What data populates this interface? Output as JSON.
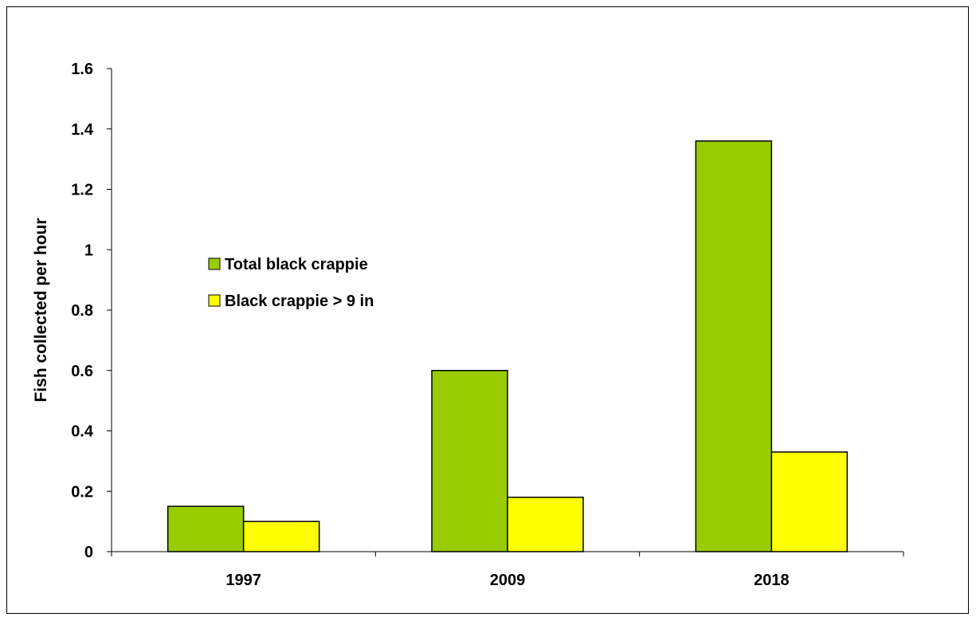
{
  "chart_data": {
    "type": "bar",
    "title": "",
    "xlabel": "",
    "ylabel": "Fish collected per hour",
    "categories": [
      "1997",
      "2009",
      "2018"
    ],
    "series": [
      {
        "name": "Total black crappie",
        "values": [
          0.15,
          0.6,
          1.36
        ],
        "color": "#99cc00"
      },
      {
        "name": "Black crappie > 9 in",
        "values": [
          0.1,
          0.18,
          0.33
        ],
        "color": "#ffff00"
      }
    ],
    "ylim": [
      0,
      1.6
    ],
    "yticks": [
      "0",
      "0.2",
      "0.4",
      "0.6",
      "0.8",
      "1",
      "1.2",
      "1.4",
      "1.6"
    ],
    "grid": false,
    "legend_position": "center-left"
  }
}
